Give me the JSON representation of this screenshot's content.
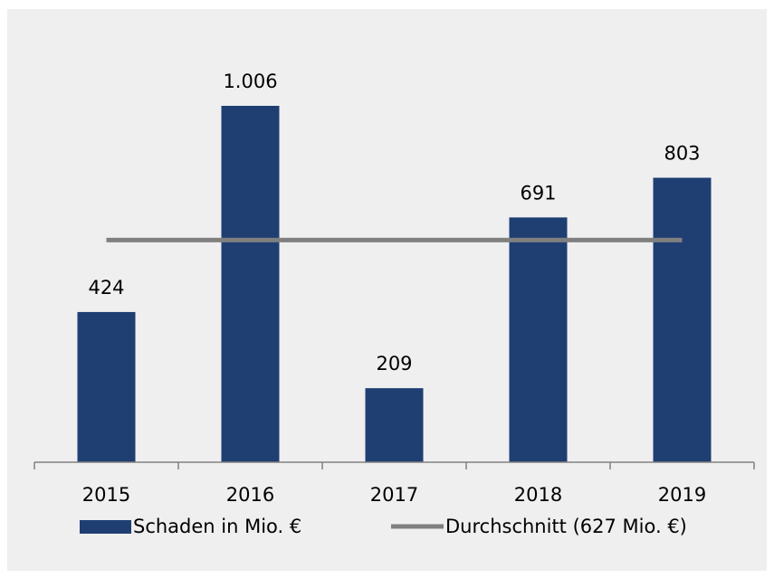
{
  "chart_data": {
    "type": "bar",
    "categories": [
      "2015",
      "2016",
      "2017",
      "2018",
      "2019"
    ],
    "series": [
      {
        "name": "Schaden in Mio. €",
        "color": "#1f3f73",
        "values": [
          424,
          1006,
          209,
          691,
          803
        ],
        "value_labels": [
          "424",
          "1.006",
          "209",
          "691",
          "803"
        ]
      }
    ],
    "average": {
      "name": "Durchschnitt (627 Mio. €)",
      "value": 627,
      "color": "#808080"
    }
  }
}
